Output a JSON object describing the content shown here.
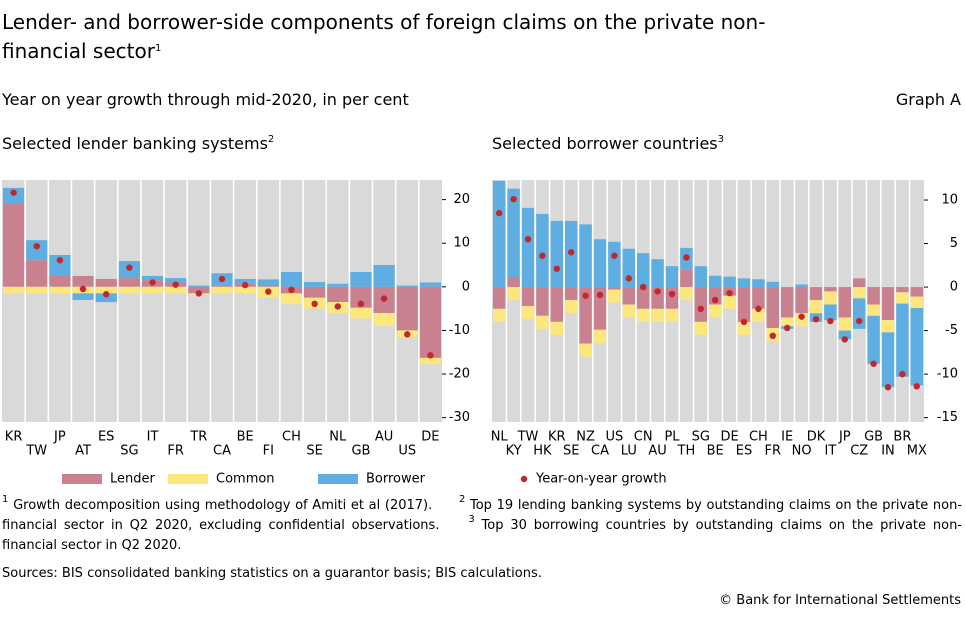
{
  "header": {
    "title": "Lender- and borrower-side components of foreign claims on the private non-financial sector",
    "title_note": "1",
    "subtitle": "Year on year growth through mid-2020, in per cent",
    "graph_label": "Graph A"
  },
  "chart_data": [
    {
      "type": "bar",
      "stacked": true,
      "title": "Selected lender banking systems",
      "title_note": "2",
      "categories": [
        "KR",
        "TW",
        "JP",
        "AT",
        "ES",
        "SG",
        "IT",
        "FR",
        "TR",
        "CA",
        "BE",
        "FI",
        "CH",
        "SE",
        "NL",
        "GB",
        "AU",
        "US",
        "DE"
      ],
      "ylim": [
        -31,
        24.5
      ],
      "yticks": [
        20,
        10,
        0,
        -10,
        -20,
        -30
      ],
      "series": [
        {
          "name": "Lender",
          "color": "#c9808f",
          "values": [
            19.1,
            6.1,
            2.5,
            2.5,
            1.8,
            2,
            1.5,
            1,
            -1.5,
            0.3,
            0.8,
            0.3,
            -1.5,
            -2.5,
            -3.5,
            -4.8,
            -6,
            -10,
            -16.3
          ]
        },
        {
          "name": "Common",
          "color": "#fbe77d",
          "values": [
            -1.5,
            -1.5,
            -1.5,
            -1.5,
            -1.5,
            -1.5,
            -1.5,
            -1.5,
            -0.3,
            -1.5,
            -1.5,
            -2.5,
            -2.5,
            -2.5,
            -2.5,
            -2.5,
            -3,
            -1.5,
            -1.4
          ]
        },
        {
          "name": "Borrower",
          "color": "#5eaee2",
          "values": [
            3.6,
            4.6,
            4.8,
            -1.5,
            -2,
            3.9,
            1,
            1,
            0.3,
            2.8,
            1,
            1.4,
            3.4,
            1.1,
            0.7,
            3.4,
            5,
            0.3,
            1
          ]
        },
        {
          "name": "Year-on-year growth",
          "type": "dot",
          "color": "#c1272d",
          "values": [
            21.6,
            9.3,
            6.1,
            -0.5,
            -1.7,
            4.4,
            1,
            0.5,
            -1.5,
            1.8,
            0.4,
            -1.1,
            -0.7,
            -3.9,
            -4.5,
            -3.9,
            -2.7,
            -10.9,
            -15.7
          ]
        }
      ]
    },
    {
      "type": "bar",
      "stacked": true,
      "title": "Selected borrower countries",
      "title_note": "3",
      "categories": [
        "NL",
        "KY",
        "TW",
        "HK",
        "KR",
        "SE",
        "NZ",
        "CA",
        "US",
        "LU",
        "CN",
        "AU",
        "PL",
        "TH",
        "SG",
        "BE",
        "DE",
        "ES",
        "CH",
        "FR",
        "IE",
        "NO",
        "DK",
        "IT",
        "JP",
        "CZ",
        "GB",
        "IN",
        "BR",
        "MX"
      ],
      "ylim": [
        -15.5,
        12.3
      ],
      "yticks": [
        10,
        5,
        0,
        -5,
        -10,
        -15
      ],
      "series": [
        {
          "name": "Lender",
          "color": "#c9808f",
          "values": [
            -2.5,
            1.1,
            -2.2,
            -3.3,
            -4,
            -1.5,
            -6.5,
            -4.9,
            -0.3,
            -2,
            -2.5,
            -2.5,
            -2.5,
            2,
            -4,
            -2,
            -1,
            -4,
            -2.5,
            -4.7,
            -3.5,
            -3,
            -1.5,
            -0.5,
            -3.5,
            1,
            -2,
            -3.8,
            -0.6,
            -1.1
          ]
        },
        {
          "name": "Common",
          "color": "#fbe77d",
          "values": [
            -1.5,
            -1.5,
            -1.5,
            -1.5,
            -1.5,
            -1.5,
            -1.5,
            -1.5,
            -1.5,
            -1.5,
            -1.5,
            -1.5,
            -1.5,
            -1.5,
            -1.5,
            -1.5,
            -1.5,
            -1.5,
            -1.5,
            -1.5,
            -1,
            -1.5,
            -1.5,
            -1.5,
            -1.5,
            -1.3,
            -1.3,
            -1.4,
            -1.3,
            -1.3
          ]
        },
        {
          "name": "Borrower",
          "color": "#5eaee2",
          "values": [
            12.2,
            10.2,
            9.1,
            8.4,
            7.6,
            7.6,
            7.2,
            5.5,
            5.2,
            4.4,
            3.9,
            3.2,
            2.4,
            2.5,
            2.4,
            1.3,
            1.2,
            1,
            0.9,
            0.6,
            -0.3,
            0.3,
            -1,
            -1.8,
            -1,
            -3.5,
            -5.5,
            -6.3,
            -8.4,
            -8.9
          ]
        },
        {
          "name": "Year-on-year growth",
          "type": "dot",
          "color": "#c1272d",
          "values": [
            8.5,
            10.1,
            5.5,
            3.6,
            2.1,
            4,
            -1,
            -0.9,
            3.6,
            1,
            0,
            -0.5,
            -0.8,
            3.4,
            -2.5,
            -1.5,
            -0.7,
            -4,
            -2.5,
            -5.6,
            -4.7,
            -3.4,
            -3.7,
            -3.9,
            -6,
            -3.9,
            -8.8,
            -11.5,
            -10,
            -11.4
          ]
        }
      ]
    }
  ],
  "footnotes": [
    {
      "marker": "1",
      "text": "Growth decomposition using methodology of Amiti et al (2017)."
    },
    {
      "marker": "2",
      "text": "Top 19 lending banking systems by outstanding claims on the private non-financial sector in Q2 2020, excluding confidential observations."
    },
    {
      "marker": "3",
      "text": "Top 30 borrowing countries by outstanding claims on the private non-financial sector in Q2 2020."
    }
  ],
  "sources": "Sources: BIS consolidated banking statistics on a guarantor basis; BIS calculations.",
  "copyright": "© Bank for International Settlements"
}
